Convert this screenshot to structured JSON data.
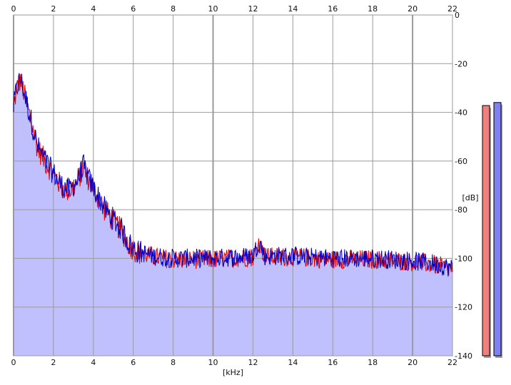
{
  "chart_data": {
    "type": "area",
    "xlabel": "[kHz]",
    "ylabel": "[dB]",
    "xlim": [
      0,
      22
    ],
    "ylim": [
      -140,
      0
    ],
    "x_ticks": [
      "0",
      "2",
      "4",
      "6",
      "8",
      "10",
      "12",
      "14",
      "16",
      "18",
      "20",
      "22"
    ],
    "y_ticks": [
      "0",
      "-20",
      "-40",
      "-60",
      "-80",
      "-100",
      "-120",
      "-140"
    ],
    "grid": true,
    "series": [
      {
        "color": "#e00000"
      },
      {
        "color": "#0000cc"
      }
    ],
    "fill_color": "#c0c0ff",
    "envelope": {
      "x": [
        0,
        0.15,
        0.35,
        0.6,
        0.9,
        1.2,
        1.6,
        2.0,
        2.4,
        2.8,
        3.2,
        3.5,
        3.8,
        4.2,
        4.6,
        5.0,
        5.4,
        5.8,
        6.2,
        7.0,
        8,
        10,
        12,
        12.3,
        12.6,
        14,
        16,
        18,
        20,
        21,
        22
      ],
      "y": [
        -38,
        -30,
        -26,
        -34,
        -44,
        -54,
        -60,
        -65,
        -70,
        -72,
        -68,
        -62,
        -68,
        -74,
        -80,
        -84,
        -88,
        -94,
        -97,
        -99,
        -100,
        -100,
        -99,
        -93,
        -99,
        -99,
        -100,
        -100,
        -101,
        -102,
        -104
      ]
    },
    "meters": [
      {
        "color": "#f08080",
        "level": 0.82
      },
      {
        "color": "#8080f0",
        "level": 0.83
      }
    ]
  }
}
